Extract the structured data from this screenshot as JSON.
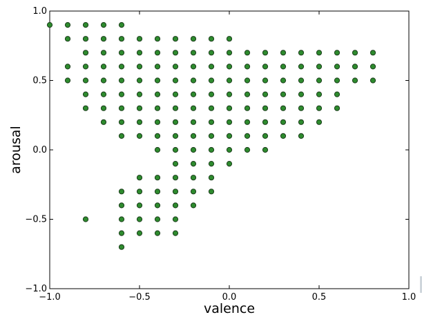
{
  "chart_data": {
    "type": "scatter",
    "title": "",
    "xlabel": "valence",
    "ylabel": "arousal",
    "xlim": [
      -1.0,
      1.0
    ],
    "ylim": [
      -1.0,
      1.0
    ],
    "xticks": [
      -1.0,
      -0.5,
      0.0,
      0.5,
      1.0
    ],
    "yticks": [
      -1.0,
      -0.5,
      0.0,
      0.5,
      1.0
    ],
    "xtick_labels": [
      "−1.0",
      "−0.5",
      "0.0",
      "0.5",
      "1.0"
    ],
    "ytick_labels": [
      "−1.0",
      "−0.5",
      "0.0",
      "0.5",
      "1.0"
    ],
    "grid": false,
    "legend": "none",
    "marker_color": "#2e8b2e",
    "marker_edge_color": "#1a3d1a",
    "points": [
      [
        -1.0,
        0.9
      ],
      [
        -0.9,
        0.9
      ],
      [
        -0.8,
        0.9
      ],
      [
        -0.7,
        0.9
      ],
      [
        -0.6,
        0.9
      ],
      [
        -0.9,
        0.8
      ],
      [
        -0.8,
        0.8
      ],
      [
        -0.7,
        0.8
      ],
      [
        -0.6,
        0.8
      ],
      [
        -0.5,
        0.8
      ],
      [
        -0.4,
        0.8
      ],
      [
        -0.3,
        0.8
      ],
      [
        -0.2,
        0.8
      ],
      [
        -0.1,
        0.8
      ],
      [
        0.0,
        0.8
      ],
      [
        -0.8,
        0.7
      ],
      [
        -0.7,
        0.7
      ],
      [
        -0.6,
        0.7
      ],
      [
        -0.5,
        0.7
      ],
      [
        -0.4,
        0.7
      ],
      [
        -0.3,
        0.7
      ],
      [
        -0.2,
        0.7
      ],
      [
        -0.1,
        0.7
      ],
      [
        0.0,
        0.7
      ],
      [
        0.1,
        0.7
      ],
      [
        0.2,
        0.7
      ],
      [
        0.3,
        0.7
      ],
      [
        0.4,
        0.7
      ],
      [
        0.5,
        0.7
      ],
      [
        0.6,
        0.7
      ],
      [
        0.7,
        0.7
      ],
      [
        0.8,
        0.7
      ],
      [
        -0.9,
        0.6
      ],
      [
        -0.8,
        0.6
      ],
      [
        -0.7,
        0.6
      ],
      [
        -0.6,
        0.6
      ],
      [
        -0.5,
        0.6
      ],
      [
        -0.4,
        0.6
      ],
      [
        -0.3,
        0.6
      ],
      [
        -0.2,
        0.6
      ],
      [
        -0.1,
        0.6
      ],
      [
        0.0,
        0.6
      ],
      [
        0.1,
        0.6
      ],
      [
        0.2,
        0.6
      ],
      [
        0.3,
        0.6
      ],
      [
        0.4,
        0.6
      ],
      [
        0.5,
        0.6
      ],
      [
        0.6,
        0.6
      ],
      [
        0.7,
        0.6
      ],
      [
        0.8,
        0.6
      ],
      [
        -0.9,
        0.5
      ],
      [
        -0.8,
        0.5
      ],
      [
        -0.7,
        0.5
      ],
      [
        -0.6,
        0.5
      ],
      [
        -0.5,
        0.5
      ],
      [
        -0.4,
        0.5
      ],
      [
        -0.3,
        0.5
      ],
      [
        -0.2,
        0.5
      ],
      [
        -0.1,
        0.5
      ],
      [
        0.0,
        0.5
      ],
      [
        0.1,
        0.5
      ],
      [
        0.2,
        0.5
      ],
      [
        0.3,
        0.5
      ],
      [
        0.4,
        0.5
      ],
      [
        0.5,
        0.5
      ],
      [
        0.6,
        0.5
      ],
      [
        0.7,
        0.5
      ],
      [
        0.8,
        0.5
      ],
      [
        -0.8,
        0.4
      ],
      [
        -0.7,
        0.4
      ],
      [
        -0.6,
        0.4
      ],
      [
        -0.5,
        0.4
      ],
      [
        -0.4,
        0.4
      ],
      [
        -0.3,
        0.4
      ],
      [
        -0.2,
        0.4
      ],
      [
        -0.1,
        0.4
      ],
      [
        0.0,
        0.4
      ],
      [
        0.1,
        0.4
      ],
      [
        0.2,
        0.4
      ],
      [
        0.3,
        0.4
      ],
      [
        0.4,
        0.4
      ],
      [
        0.5,
        0.4
      ],
      [
        0.6,
        0.4
      ],
      [
        -0.8,
        0.3
      ],
      [
        -0.7,
        0.3
      ],
      [
        -0.6,
        0.3
      ],
      [
        -0.5,
        0.3
      ],
      [
        -0.4,
        0.3
      ],
      [
        -0.3,
        0.3
      ],
      [
        -0.2,
        0.3
      ],
      [
        -0.1,
        0.3
      ],
      [
        0.0,
        0.3
      ],
      [
        0.1,
        0.3
      ],
      [
        0.2,
        0.3
      ],
      [
        0.3,
        0.3
      ],
      [
        0.4,
        0.3
      ],
      [
        0.5,
        0.3
      ],
      [
        0.6,
        0.3
      ],
      [
        -0.7,
        0.2
      ],
      [
        -0.6,
        0.2
      ],
      [
        -0.5,
        0.2
      ],
      [
        -0.4,
        0.2
      ],
      [
        -0.3,
        0.2
      ],
      [
        -0.2,
        0.2
      ],
      [
        -0.1,
        0.2
      ],
      [
        0.0,
        0.2
      ],
      [
        0.1,
        0.2
      ],
      [
        0.2,
        0.2
      ],
      [
        0.3,
        0.2
      ],
      [
        0.4,
        0.2
      ],
      [
        0.5,
        0.2
      ],
      [
        -0.6,
        0.1
      ],
      [
        -0.5,
        0.1
      ],
      [
        -0.4,
        0.1
      ],
      [
        -0.3,
        0.1
      ],
      [
        -0.2,
        0.1
      ],
      [
        -0.1,
        0.1
      ],
      [
        0.0,
        0.1
      ],
      [
        0.1,
        0.1
      ],
      [
        0.2,
        0.1
      ],
      [
        0.3,
        0.1
      ],
      [
        0.4,
        0.1
      ],
      [
        -0.4,
        0.0
      ],
      [
        -0.3,
        0.0
      ],
      [
        -0.2,
        0.0
      ],
      [
        -0.1,
        0.0
      ],
      [
        0.0,
        0.0
      ],
      [
        0.1,
        0.0
      ],
      [
        0.2,
        0.0
      ],
      [
        -0.3,
        -0.1
      ],
      [
        -0.2,
        -0.1
      ],
      [
        -0.1,
        -0.1
      ],
      [
        0.0,
        -0.1
      ],
      [
        -0.3,
        -0.2
      ],
      [
        -0.2,
        -0.2
      ],
      [
        -0.1,
        -0.2
      ],
      [
        -0.5,
        -0.2
      ],
      [
        -0.4,
        -0.2
      ],
      [
        -0.6,
        -0.3
      ],
      [
        -0.5,
        -0.3
      ],
      [
        -0.4,
        -0.3
      ],
      [
        -0.3,
        -0.3
      ],
      [
        -0.2,
        -0.3
      ],
      [
        -0.1,
        -0.3
      ],
      [
        -0.6,
        -0.4
      ],
      [
        -0.5,
        -0.4
      ],
      [
        -0.4,
        -0.4
      ],
      [
        -0.3,
        -0.4
      ],
      [
        -0.2,
        -0.4
      ],
      [
        -0.8,
        -0.5
      ],
      [
        -0.6,
        -0.5
      ],
      [
        -0.5,
        -0.5
      ],
      [
        -0.4,
        -0.5
      ],
      [
        -0.3,
        -0.5
      ],
      [
        -0.6,
        -0.6
      ],
      [
        -0.5,
        -0.6
      ],
      [
        -0.4,
        -0.6
      ],
      [
        -0.3,
        -0.6
      ],
      [
        -0.6,
        -0.7
      ]
    ]
  }
}
